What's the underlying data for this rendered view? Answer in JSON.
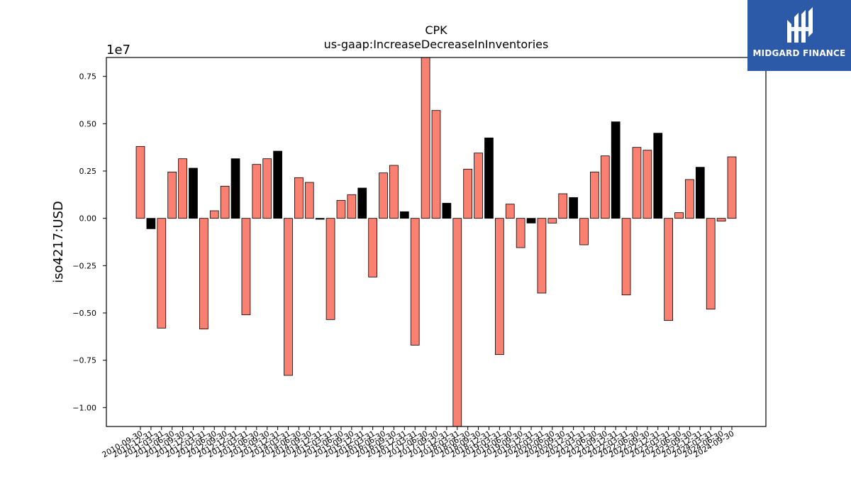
{
  "chart_data": {
    "type": "bar",
    "title": "CPK",
    "subtitle": "us-gaap:IncreaseDecreaseInInventories",
    "ylabel": "iso4217:USD",
    "xlabel": "",
    "y_multiplier_label": "1e7",
    "ylim": [
      -1.1,
      0.85
    ],
    "yticks": [
      0.75,
      0.5,
      0.25,
      0.0,
      -0.25,
      -0.5,
      -0.75,
      -1.0
    ],
    "grid": false,
    "legend": "none",
    "colors": {
      "quarterly": "#fa8072",
      "annual": "#000000",
      "edge": "#000000"
    },
    "categories": [
      "2010-09-30",
      "2010-12-31",
      "2011-03-31",
      "2011-06-30",
      "2011-09-30",
      "2011-12-31",
      "2012-03-31",
      "2012-06-30",
      "2012-09-30",
      "2012-12-31",
      "2013-03-31",
      "2013-06-30",
      "2013-09-30",
      "2013-12-31",
      "2014-03-31",
      "2014-06-30",
      "2014-09-30",
      "2014-12-31",
      "2015-03-31",
      "2015-06-30",
      "2015-09-30",
      "2015-12-31",
      "2016-03-31",
      "2016-06-30",
      "2016-09-30",
      "2016-12-31",
      "2017-03-31",
      "2017-06-30",
      "2017-09-30",
      "2017-12-31",
      "2018-03-31",
      "2018-06-30",
      "2018-09-30",
      "2018-12-31",
      "2019-03-31",
      "2019-06-30",
      "2019-09-30",
      "2019-12-31",
      "2020-03-31",
      "2020-06-30",
      "2020-09-30",
      "2020-12-31",
      "2021-03-31",
      "2021-06-30",
      "2021-09-30",
      "2021-12-31",
      "2022-03-31",
      "2022-06-30",
      "2022-09-30",
      "2022-12-31",
      "2023-03-31",
      "2023-06-30",
      "2023-09-30",
      "2023-12-31",
      "2024-03-31",
      "2024-06-30",
      "2024-09-30"
    ],
    "values": [
      0.38,
      -0.055,
      -0.58,
      0.245,
      0.315,
      0.265,
      -0.585,
      0.04,
      0.17,
      0.315,
      -0.51,
      0.285,
      0.315,
      0.355,
      -0.83,
      0.215,
      0.19,
      -0.005,
      -0.535,
      0.095,
      0.125,
      0.16,
      -0.31,
      0.24,
      0.28,
      0.035,
      -0.67,
      0.87,
      0.57,
      0.08,
      -1.15,
      0.26,
      0.345,
      0.425,
      -0.72,
      0.075,
      -0.155,
      -0.025,
      -0.395,
      -0.025,
      0.13,
      0.11,
      -0.14,
      0.245,
      0.33,
      0.51,
      -0.405,
      0.375,
      0.36,
      0.45,
      -0.54,
      0.03,
      0.205,
      0.27,
      -0.48,
      -0.015,
      0.325
    ],
    "annual_flags": [
      0,
      1,
      0,
      0,
      0,
      1,
      0,
      0,
      0,
      1,
      0,
      0,
      0,
      1,
      0,
      0,
      0,
      1,
      0,
      0,
      0,
      1,
      0,
      0,
      0,
      1,
      0,
      0,
      0,
      1,
      0,
      0,
      0,
      1,
      0,
      0,
      0,
      1,
      0,
      0,
      0,
      1,
      0,
      0,
      0,
      1,
      0,
      0,
      0,
      1,
      0,
      0,
      0,
      1,
      0,
      0,
      0
    ]
  },
  "logo": {
    "name": "MIDGARD FINANCE",
    "icon": "midgard-logo-icon"
  }
}
